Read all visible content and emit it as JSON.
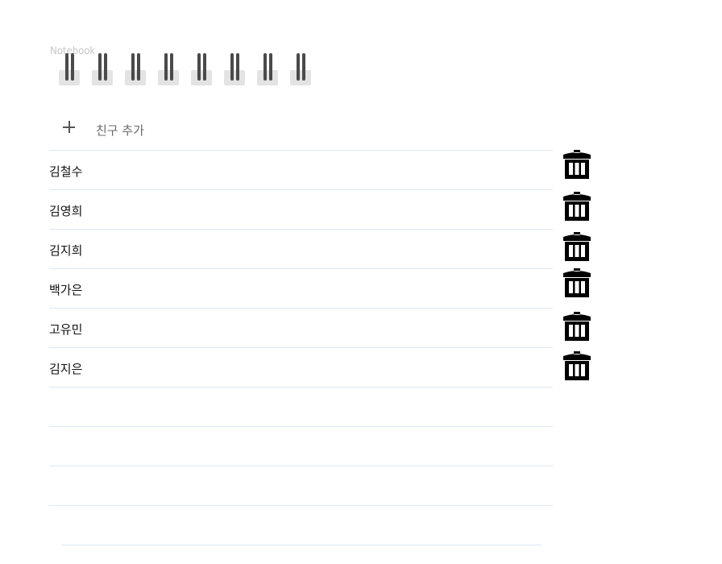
{
  "notebook": {
    "label": "Notebook",
    "ring_count": 8
  },
  "add_friend": {
    "icon": "plus-icon",
    "label": "친구 추가"
  },
  "friends": [
    {
      "name": "김철수"
    },
    {
      "name": "김영희"
    },
    {
      "name": "김지희"
    },
    {
      "name": "백가은"
    },
    {
      "name": "고유민"
    },
    {
      "name": "김지은"
    }
  ],
  "empty_line_count": 4,
  "delete_icon": "trash-icon",
  "colors": {
    "line": "#dde8f2",
    "ring": "#4a4a4a",
    "ring_hole": "#e3e3e3",
    "trash": "#000000"
  }
}
